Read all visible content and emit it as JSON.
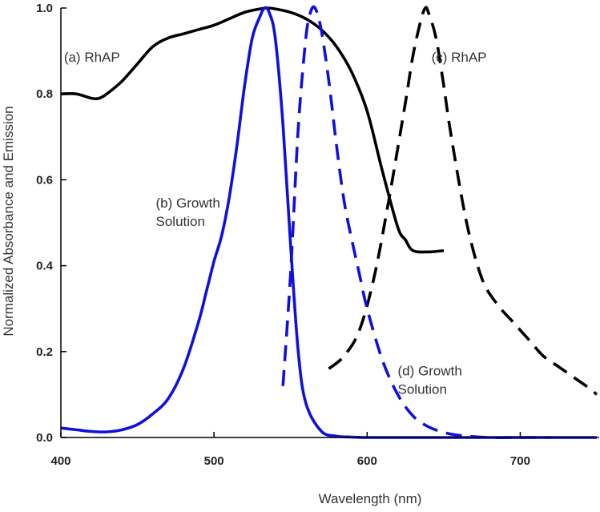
{
  "chart_data": {
    "type": "line",
    "title": "",
    "xlabel": "Wavelength (nm)",
    "ylabel": "Normalized Absorbance and Emission",
    "xlim": [
      400,
      750
    ],
    "ylim": [
      0,
      1.0
    ],
    "x_ticks": [
      {
        "value": 400,
        "label": "400"
      },
      {
        "value": 500,
        "label": "500"
      },
      {
        "value": 600,
        "label": "600"
      },
      {
        "value": 700,
        "label": "700"
      }
    ],
    "y_ticks": [
      {
        "value": 0.0,
        "label": "0.0"
      },
      {
        "value": 0.2,
        "label": "0.2"
      },
      {
        "value": 0.4,
        "label": "0.4"
      },
      {
        "value": 0.6,
        "label": "0.6"
      },
      {
        "value": 0.8,
        "label": "0.8"
      },
      {
        "value": 1.0,
        "label": "1.0"
      }
    ],
    "series": [
      {
        "name": "(a) RhAP",
        "color": "#000000",
        "dashed": false,
        "x": [
          400,
          410,
          420,
          425,
          430,
          440,
          450,
          460,
          470,
          480,
          490,
          500,
          510,
          520,
          530,
          535,
          540,
          550,
          560,
          570,
          580,
          590,
          600,
          610,
          620,
          625,
          630,
          640,
          650
        ],
        "y": [
          0.8,
          0.8,
          0.79,
          0.79,
          0.8,
          0.83,
          0.87,
          0.91,
          0.93,
          0.94,
          0.95,
          0.96,
          0.975,
          0.99,
          0.998,
          1.0,
          0.998,
          0.99,
          0.975,
          0.95,
          0.91,
          0.85,
          0.76,
          0.62,
          0.49,
          0.46,
          0.435,
          0.432,
          0.435
        ]
      },
      {
        "name": "(b) Growth Solution",
        "color": "#1010dd",
        "dashed": false,
        "x": [
          400,
          410,
          420,
          430,
          440,
          450,
          460,
          470,
          480,
          490,
          495,
          500,
          505,
          510,
          515,
          520,
          525,
          530,
          533,
          536,
          540,
          545,
          550,
          555,
          560,
          570,
          580,
          590,
          600,
          620,
          650,
          700,
          750
        ],
        "y": [
          0.022,
          0.018,
          0.014,
          0.013,
          0.018,
          0.03,
          0.055,
          0.09,
          0.16,
          0.27,
          0.34,
          0.41,
          0.47,
          0.56,
          0.68,
          0.82,
          0.93,
          0.98,
          1.0,
          0.99,
          0.93,
          0.73,
          0.45,
          0.2,
          0.08,
          0.015,
          0.003,
          0.001,
          0.0,
          0.0,
          0.0,
          0.0,
          0.0
        ]
      },
      {
        "name": "(c) RhAP",
        "color": "#000000",
        "dashed": true,
        "x": [
          575,
          585,
          595,
          605,
          615,
          625,
          630,
          635,
          638,
          640,
          645,
          650,
          655,
          665,
          675,
          685,
          695,
          705,
          715,
          725,
          735,
          745,
          750
        ],
        "y": [
          0.16,
          0.19,
          0.25,
          0.38,
          0.57,
          0.78,
          0.89,
          0.97,
          1.0,
          0.99,
          0.93,
          0.82,
          0.7,
          0.5,
          0.37,
          0.31,
          0.27,
          0.23,
          0.19,
          0.165,
          0.14,
          0.115,
          0.1
        ]
      },
      {
        "name": "(d) Growth Solution",
        "color": "#1010dd",
        "dashed": true,
        "x": [
          545,
          550,
          555,
          560,
          563,
          566,
          570,
          575,
          580,
          585,
          590,
          595,
          600,
          610,
          620,
          630,
          640,
          650,
          660,
          680,
          700,
          720
        ],
        "y": [
          0.12,
          0.38,
          0.72,
          0.93,
          0.99,
          1.0,
          0.95,
          0.83,
          0.68,
          0.55,
          0.46,
          0.38,
          0.3,
          0.18,
          0.1,
          0.05,
          0.025,
          0.012,
          0.005,
          0.0,
          0.0,
          0.0
        ]
      }
    ],
    "annotations": [
      {
        "id": "a",
        "lines": [
          "(a) RhAP"
        ],
        "x": 402,
        "y": 0.875,
        "color": "#333333"
      },
      {
        "id": "c",
        "lines": [
          "(c) RhAP"
        ],
        "x": 642,
        "y": 0.875,
        "color": "#333333"
      },
      {
        "id": "b",
        "lines": [
          "(b) Growth",
          "Solution"
        ],
        "x": 462,
        "y": 0.535,
        "color": "#333333"
      },
      {
        "id": "d",
        "lines": [
          "(d) Growth",
          "Solution"
        ],
        "x": 620,
        "y": 0.145,
        "color": "#333333"
      }
    ]
  }
}
